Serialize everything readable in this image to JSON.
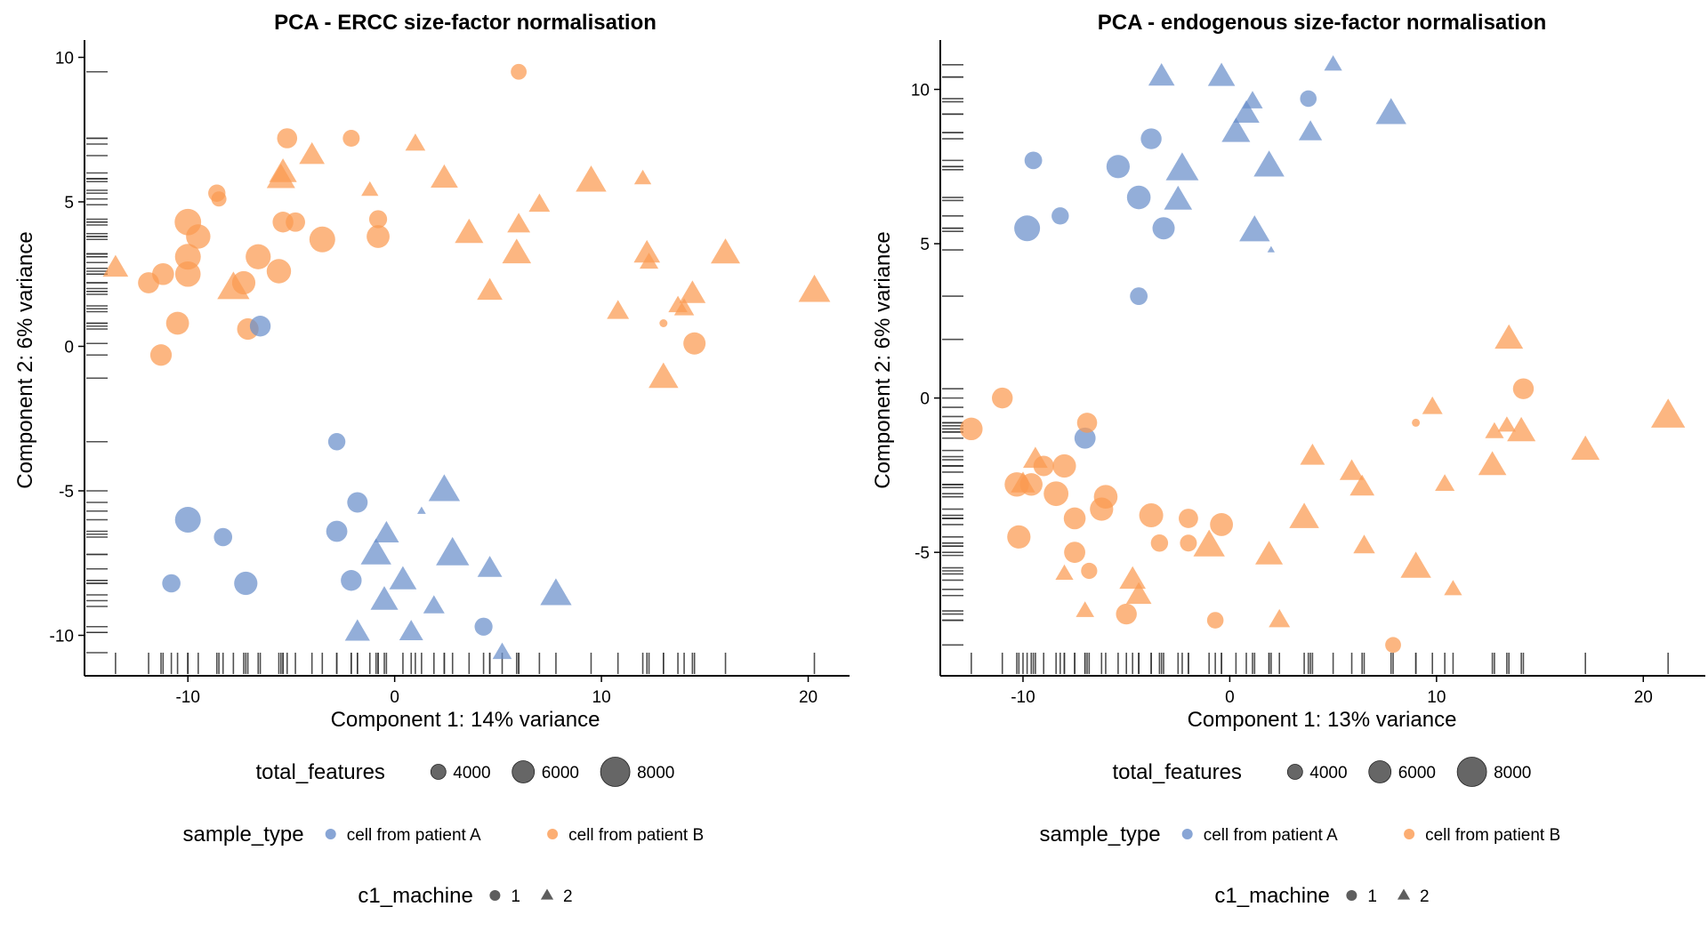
{
  "colors": {
    "cell from patient A": "#6a8fcb",
    "cell from patient B": "#fb9a50",
    "legend_size": "#555555",
    "axis": "#000000",
    "rug": "#333333"
  },
  "legends": [
    {
      "title": "total_features",
      "kind": "size",
      "items": [
        {
          "label": "4000",
          "value": 4000
        },
        {
          "label": "6000",
          "value": 6000
        },
        {
          "label": "8000",
          "value": 8000
        }
      ]
    },
    {
      "title": "sample_type",
      "kind": "color",
      "items": [
        {
          "label": "cell from patient A",
          "color": "#6a8fcb"
        },
        {
          "label": "cell from patient B",
          "color": "#fb9a50"
        }
      ]
    },
    {
      "title": "c1_machine",
      "kind": "shape",
      "items": [
        {
          "label": "1",
          "shape": "circle"
        },
        {
          "label": "2",
          "shape": "triangle"
        }
      ]
    }
  ],
  "chart_data": [
    {
      "type": "scatter",
      "title": "PCA - ERCC size-factor normalisation",
      "xlabel": "Component 1: 14% variance",
      "ylabel": "Component 2: 6% variance",
      "xlim": [
        -15,
        22
      ],
      "ylim": [
        -11.4,
        10.6
      ],
      "xticks": [
        -10,
        0,
        10,
        20
      ],
      "yticks": [
        -10,
        -5,
        0,
        5,
        10
      ],
      "rug": true,
      "grid": false,
      "point_fields": [
        "x",
        "y",
        "sample_type",
        "c1_machine",
        "total_features"
      ],
      "points": [
        [
          -10.0,
          4.3,
          "B",
          1,
          7200
        ],
        [
          -9.5,
          3.8,
          "B",
          1,
          6600
        ],
        [
          -10.0,
          3.1,
          "B",
          1,
          7000
        ],
        [
          -10.0,
          2.5,
          "B",
          1,
          6900
        ],
        [
          -11.2,
          2.5,
          "B",
          1,
          5900
        ],
        [
          -11.9,
          2.2,
          "B",
          1,
          5700
        ],
        [
          -10.5,
          0.8,
          "B",
          1,
          6200
        ],
        [
          -11.3,
          -0.3,
          "B",
          1,
          5800
        ],
        [
          -7.1,
          0.6,
          "B",
          1,
          5800
        ],
        [
          -7.3,
          2.2,
          "B",
          1,
          6300
        ],
        [
          -6.6,
          3.1,
          "B",
          1,
          6800
        ],
        [
          -5.6,
          2.6,
          "B",
          1,
          6600
        ],
        [
          -5.4,
          4.3,
          "B",
          1,
          5600
        ],
        [
          -4.8,
          4.3,
          "B",
          1,
          5200
        ],
        [
          -3.5,
          3.7,
          "B",
          1,
          7000
        ],
        [
          -5.2,
          7.2,
          "B",
          1,
          5400
        ],
        [
          -8.6,
          5.3,
          "B",
          1,
          4600
        ],
        [
          -8.5,
          5.1,
          "B",
          1,
          4000
        ],
        [
          -2.1,
          7.2,
          "B",
          1,
          4500
        ],
        [
          -0.8,
          4.4,
          "B",
          1,
          4800
        ],
        [
          -0.8,
          3.8,
          "B",
          1,
          6200
        ],
        [
          6.0,
          9.5,
          "B",
          1,
          4200
        ],
        [
          14.5,
          0.1,
          "B",
          1,
          6000
        ],
        [
          13.0,
          0.8,
          "B",
          1,
          2000
        ],
        [
          -13.5,
          2.7,
          "B",
          2,
          5800
        ],
        [
          -7.8,
          2.0,
          "B",
          2,
          7400
        ],
        [
          -5.4,
          6.0,
          "B",
          2,
          6300
        ],
        [
          -5.5,
          5.8,
          "B",
          2,
          6500
        ],
        [
          -4.0,
          6.6,
          "B",
          2,
          5800
        ],
        [
          -1.2,
          5.4,
          "B",
          2,
          3800
        ],
        [
          1.0,
          7.0,
          "B",
          2,
          4500
        ],
        [
          2.4,
          5.8,
          "B",
          2,
          6200
        ],
        [
          3.6,
          3.9,
          "B",
          2,
          6500
        ],
        [
          4.6,
          1.9,
          "B",
          2,
          5800
        ],
        [
          5.9,
          3.2,
          "B",
          2,
          6600
        ],
        [
          6.0,
          4.2,
          "B",
          2,
          5200
        ],
        [
          7.0,
          4.9,
          "B",
          2,
          4800
        ],
        [
          9.5,
          5.7,
          "B",
          2,
          7000
        ],
        [
          10.8,
          1.2,
          "B",
          2,
          5000
        ],
        [
          12.0,
          5.8,
          "B",
          2,
          3800
        ],
        [
          12.2,
          3.2,
          "B",
          2,
          6000
        ],
        [
          12.3,
          2.9,
          "B",
          2,
          4200
        ],
        [
          13.0,
          -1.1,
          "B",
          2,
          6800
        ],
        [
          13.7,
          1.4,
          "B",
          2,
          4300
        ],
        [
          14.0,
          1.3,
          "B",
          2,
          4500
        ],
        [
          14.4,
          1.8,
          "B",
          2,
          6000
        ],
        [
          16.0,
          3.2,
          "B",
          2,
          6700
        ],
        [
          20.3,
          1.9,
          "B",
          2,
          7300
        ],
        [
          -6.5,
          0.7,
          "A",
          1,
          5600
        ],
        [
          -10.0,
          -6.0,
          "A",
          1,
          7000
        ],
        [
          -8.3,
          -6.6,
          "A",
          1,
          4900
        ],
        [
          -10.8,
          -8.2,
          "A",
          1,
          4900
        ],
        [
          -7.2,
          -8.2,
          "A",
          1,
          6300
        ],
        [
          -2.8,
          -3.3,
          "A",
          1,
          4600
        ],
        [
          -1.8,
          -5.4,
          "A",
          1,
          5500
        ],
        [
          -2.8,
          -6.4,
          "A",
          1,
          5700
        ],
        [
          -2.1,
          -8.1,
          "A",
          1,
          5600
        ],
        [
          4.3,
          -9.7,
          "A",
          1,
          4800
        ],
        [
          2.4,
          -5.0,
          "A",
          2,
          7200
        ],
        [
          1.3,
          -5.7,
          "A",
          2,
          1800
        ],
        [
          -0.4,
          -6.5,
          "A",
          2,
          5700
        ],
        [
          -0.9,
          -7.2,
          "A",
          2,
          7000
        ],
        [
          2.8,
          -7.2,
          "A",
          2,
          7600
        ],
        [
          4.6,
          -7.7,
          "A",
          2,
          5600
        ],
        [
          0.4,
          -8.1,
          "A",
          2,
          6200
        ],
        [
          -0.5,
          -8.8,
          "A",
          2,
          6300
        ],
        [
          1.9,
          -9.0,
          "A",
          2,
          4800
        ],
        [
          -1.8,
          -9.9,
          "A",
          2,
          5700
        ],
        [
          0.8,
          -9.9,
          "A",
          2,
          5400
        ],
        [
          5.2,
          -10.6,
          "A",
          2,
          4300
        ],
        [
          7.8,
          -8.6,
          "A",
          2,
          7200
        ]
      ]
    },
    {
      "type": "scatter",
      "title": "PCA - endogenous size-factor normalisation",
      "xlabel": "Component 1: 13% variance",
      "ylabel": "Component 2: 6% variance",
      "xlim": [
        -14,
        23
      ],
      "ylim": [
        -9.0,
        11.6
      ],
      "xticks": [
        -10,
        0,
        10,
        20
      ],
      "yticks": [
        -5,
        0,
        5,
        10
      ],
      "rug": true,
      "grid": false,
      "point_fields": [
        "x",
        "y",
        "sample_type",
        "c1_machine",
        "total_features"
      ],
      "points": [
        [
          -9.5,
          7.7,
          "A",
          1,
          4700
        ],
        [
          -9.8,
          5.5,
          "A",
          1,
          7000
        ],
        [
          -8.2,
          5.9,
          "A",
          1,
          4600
        ],
        [
          -5.4,
          7.5,
          "A",
          1,
          6300
        ],
        [
          -4.4,
          6.5,
          "A",
          1,
          6400
        ],
        [
          -3.8,
          8.4,
          "A",
          1,
          5600
        ],
        [
          -3.2,
          5.5,
          "A",
          1,
          6000
        ],
        [
          -4.4,
          3.3,
          "A",
          1,
          4700
        ],
        [
          3.8,
          9.7,
          "A",
          1,
          4400
        ],
        [
          -7.0,
          -1.3,
          "A",
          1,
          5700
        ],
        [
          -3.3,
          10.4,
          "A",
          2,
          6000
        ],
        [
          -0.4,
          10.4,
          "A",
          2,
          6200
        ],
        [
          0.8,
          9.2,
          "A",
          2,
          6000
        ],
        [
          1.1,
          9.6,
          "A",
          2,
          4600
        ],
        [
          5.0,
          10.8,
          "A",
          2,
          4000
        ],
        [
          7.8,
          9.2,
          "A",
          2,
          7000
        ],
        [
          0.3,
          8.6,
          "A",
          2,
          6500
        ],
        [
          3.9,
          8.6,
          "A",
          2,
          5300
        ],
        [
          -2.3,
          7.4,
          "A",
          2,
          7500
        ],
        [
          1.9,
          7.5,
          "A",
          2,
          7000
        ],
        [
          -2.5,
          6.4,
          "A",
          2,
          6400
        ],
        [
          1.2,
          5.4,
          "A",
          2,
          7000
        ],
        [
          2.0,
          4.8,
          "A",
          2,
          1500
        ],
        [
          -12.5,
          -1.0,
          "B",
          1,
          6100
        ],
        [
          -11.0,
          0.0,
          "B",
          1,
          5600
        ],
        [
          -6.9,
          -0.8,
          "B",
          1,
          5400
        ],
        [
          -10.3,
          -2.8,
          "B",
          1,
          6600
        ],
        [
          -9.6,
          -2.8,
          "B",
          1,
          6100
        ],
        [
          -8.4,
          -3.1,
          "B",
          1,
          6700
        ],
        [
          -8.0,
          -2.2,
          "B",
          1,
          6300
        ],
        [
          -9.0,
          -2.2,
          "B",
          1,
          5500
        ],
        [
          -6.0,
          -3.2,
          "B",
          1,
          6400
        ],
        [
          -6.2,
          -3.6,
          "B",
          1,
          6300
        ],
        [
          -7.5,
          -3.9,
          "B",
          1,
          5900
        ],
        [
          -10.2,
          -4.5,
          "B",
          1,
          6300
        ],
        [
          -7.5,
          -5.0,
          "B",
          1,
          5700
        ],
        [
          -6.8,
          -5.6,
          "B",
          1,
          4300
        ],
        [
          -5.0,
          -7.0,
          "B",
          1,
          5600
        ],
        [
          -3.8,
          -3.8,
          "B",
          1,
          6500
        ],
        [
          -2.0,
          -3.9,
          "B",
          1,
          5200
        ],
        [
          -0.4,
          -4.1,
          "B",
          1,
          6200
        ],
        [
          -3.4,
          -4.7,
          "B",
          1,
          4600
        ],
        [
          -2.0,
          -4.7,
          "B",
          1,
          4500
        ],
        [
          -0.7,
          -7.2,
          "B",
          1,
          4400
        ],
        [
          7.9,
          -8.0,
          "B",
          1,
          4200
        ],
        [
          14.2,
          0.3,
          "B",
          1,
          5600
        ],
        [
          9.0,
          -0.8,
          "B",
          1,
          2000
        ],
        [
          -7.0,
          -6.9,
          "B",
          2,
          4100
        ],
        [
          -4.4,
          -6.4,
          "B",
          2,
          5800
        ],
        [
          -4.7,
          -5.9,
          "B",
          2,
          6000
        ],
        [
          -8.0,
          -5.7,
          "B",
          2,
          4000
        ],
        [
          -1.0,
          -4.8,
          "B",
          2,
          7200
        ],
        [
          1.9,
          -5.1,
          "B",
          2,
          6300
        ],
        [
          2.4,
          -7.2,
          "B",
          2,
          4800
        ],
        [
          3.6,
          -3.9,
          "B",
          2,
          6800
        ],
        [
          4.0,
          -1.9,
          "B",
          2,
          5600
        ],
        [
          5.9,
          -2.4,
          "B",
          2,
          5500
        ],
        [
          6.4,
          -2.9,
          "B",
          2,
          5600
        ],
        [
          6.5,
          -4.8,
          "B",
          2,
          4900
        ],
        [
          9.0,
          -5.5,
          "B",
          2,
          7000
        ],
        [
          9.8,
          -0.3,
          "B",
          2,
          4600
        ],
        [
          10.4,
          -2.8,
          "B",
          2,
          4400
        ],
        [
          10.8,
          -6.2,
          "B",
          2,
          4000
        ],
        [
          12.7,
          -2.2,
          "B",
          2,
          6400
        ],
        [
          12.8,
          -1.1,
          "B",
          2,
          4200
        ],
        [
          13.4,
          -0.9,
          "B",
          2,
          4000
        ],
        [
          14.1,
          -1.1,
          "B",
          2,
          6500
        ],
        [
          13.5,
          1.9,
          "B",
          2,
          6500
        ],
        [
          17.2,
          -1.7,
          "B",
          2,
          6500
        ],
        [
          21.2,
          -0.6,
          "B",
          2,
          7800
        ],
        [
          -10.0,
          -2.8,
          "B",
          2,
          5500
        ],
        [
          -9.4,
          -2.0,
          "B",
          2,
          5600
        ]
      ]
    }
  ]
}
